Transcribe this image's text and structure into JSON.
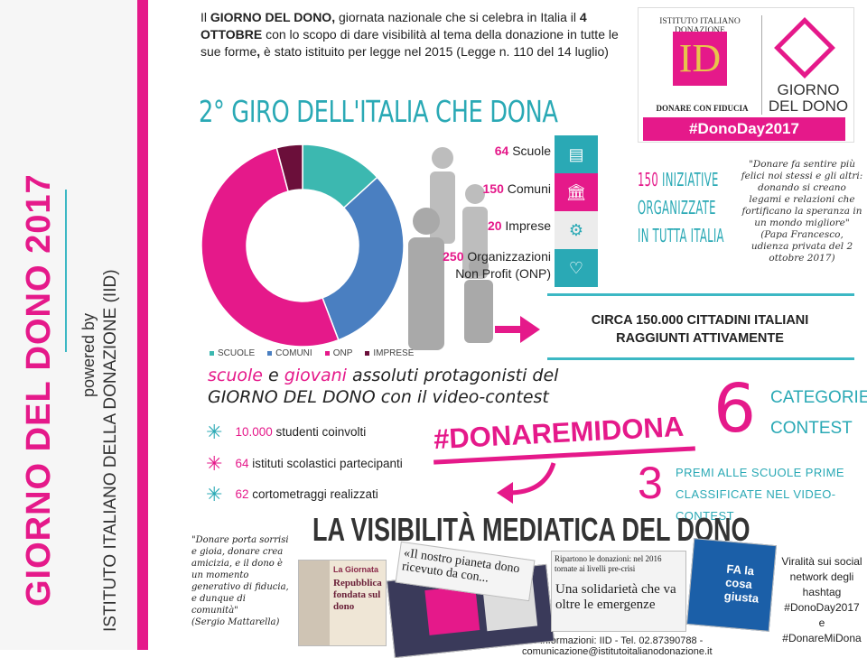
{
  "sidebar": {
    "title": "GIORNO DEL DONO 2017",
    "powered": "powered by",
    "org": "ISTITUTO ITALIANO DELLA DONAZIONE (IID)"
  },
  "intro": {
    "p1": "Il ",
    "b1": "GIORNO DEL DONO,",
    "p2": " giornata nazionale che si celebra in Italia il ",
    "b2": "4 OTTOBRE",
    "p3": " con lo scopo di dare visibilità al tema della donazione in tutte le sue forme",
    "b3": ",",
    "p4": " è stato istituito per legge nel 2015 (Legge n. 110 del 14 luglio)"
  },
  "heading": "2° GIRO DELL'ITALIA CHE DONA",
  "logo": {
    "arc": "ISTITUTO ITALIANO DONAZIONE",
    "mark": "ID",
    "tagline": "DONARE CON FIDUCIA",
    "gdd1": "GIORNO",
    "gdd2": "DEL DONO",
    "hashtag": "#DonoDay2017"
  },
  "stats": [
    {
      "num": "64",
      "label": "Scuole"
    },
    {
      "num": "150",
      "label": "Comuni"
    },
    {
      "num": "20",
      "label": "Imprese"
    },
    {
      "num": "250",
      "label": "Organizzazioni Non Profit (ONP)"
    }
  ],
  "icons": [
    {
      "icon": "book-icon",
      "label": "SCUOLE",
      "color": "#2aa9b5"
    },
    {
      "icon": "town-hall-icon",
      "label": "COMUNI",
      "color": "#e5198a"
    },
    {
      "icon": "gears-icon",
      "label": "IMPRESE",
      "color": "#e8e8e8"
    },
    {
      "icon": "heart-icon",
      "label": "NON PROFIT",
      "color": "#2aa9b5"
    }
  ],
  "iniziative": {
    "num": "150",
    "l1": "INIZIATIVE",
    "l2": "ORGANIZZATE",
    "l3": "IN TUTTA ITALIA"
  },
  "papa": {
    "quote": "\"Donare fa sentire più felici noi stessi e gli altri: donando si creano legami e relazioni che fortificano la speranza in un mondo migliore\"",
    "source": "(Papa Francesco, udienza privata del 2 ottobre 2017)"
  },
  "cittadini": {
    "l1": "CIRCA 150.000 CITTADINI ITALIANI",
    "l2": "RAGGIUNTI ATTIVAMENTE"
  },
  "chart_data": {
    "type": "pie",
    "donut": true,
    "categories": [
      "SCUOLE",
      "COMUNI",
      "ONP",
      "IMPRESE"
    ],
    "values": [
      64,
      150,
      250,
      20
    ],
    "colors": [
      "#3cb8b0",
      "#4a7fc1",
      "#e5198a",
      "#6b0f3a"
    ],
    "legend": "bottom"
  },
  "video": {
    "w1": "scuole",
    "w2": " e ",
    "w3": "giovani",
    "w4": " assoluti protagonisti del",
    "l2a": "GIORNO DEL DONO",
    "l2b": " con il video-contest"
  },
  "bullets": [
    {
      "num": "10.000",
      "text": " studenti coinvolti"
    },
    {
      "num": "64",
      "text": " istituti scolastici partecipanti"
    },
    {
      "num": "62",
      "text": " cortometraggi realizzati"
    }
  ],
  "hashtag": "#DONAREMIDONA",
  "contest": {
    "num": "6",
    "l1": "CATEGORIE",
    "l2": "CONTEST"
  },
  "premi": {
    "num": "3",
    "l1": "PREMI ALLE SCUOLE PRIME",
    "l2": "CLASSIFICATE NEL VIDEO-CONTEST"
  },
  "media_title": "LA VISIBILITÀ MEDIATICA DEL DONO",
  "mattarella": {
    "quote": "\"Donare porta sorrisi e gioia, donare crea amicizia, e il dono è un momento generativo di fiducia, e dunque di comunità\"",
    "source": "(Sergio Mattarella)"
  },
  "clips": {
    "c1a": "La Giornata",
    "c1b": "Repubblica fondata sul dono",
    "c2": "«Il nostro pianeta dono ricevuto da con...",
    "c3a": "Ripartono le donazioni: nel 2016 tornate ai livelli pre-crisi",
    "c3b": "Una solidarietà che va oltre le emergenze",
    "c4": "FA la cosa giusta"
  },
  "viral": "Viralità sui social network degli hashtag #DonoDay2017 e #DonareMiDona",
  "footer": "Per informazioni: IID - Tel. 02.87390788 - comunicazione@istitutoitalianodonazione.it"
}
